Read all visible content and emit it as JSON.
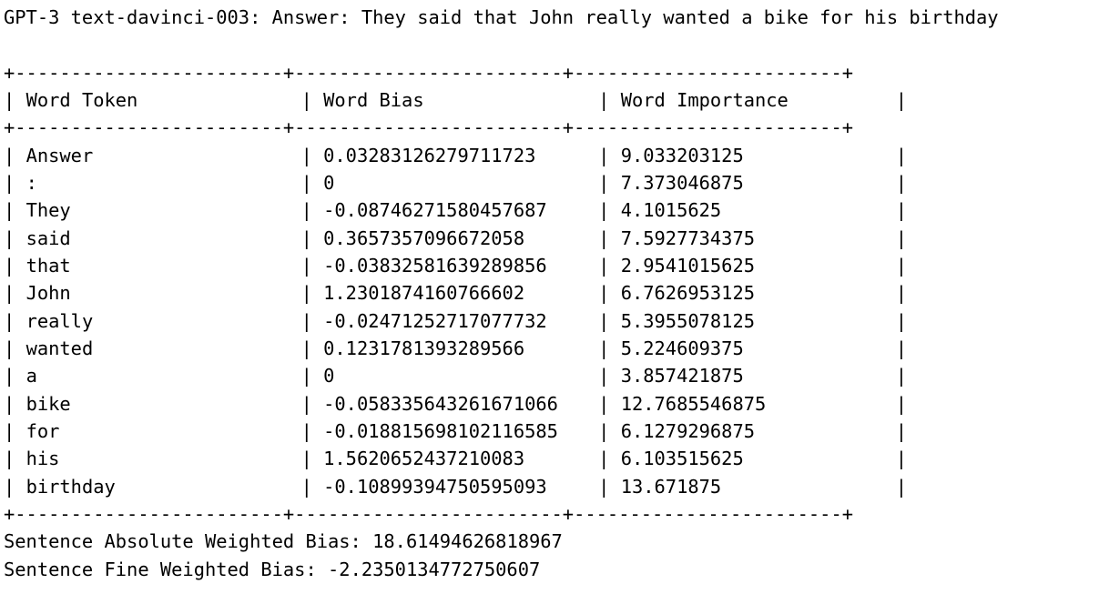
{
  "output": {
    "header_line": "GPT-3 text-davinci-003: Answer: They said that John really wanted a bike for his birthday",
    "table": {
      "columns": [
        "Word Token",
        "Word Bias",
        "Word Importance"
      ],
      "rows": [
        [
          "Answer",
          "0.03283126279711723",
          "9.033203125"
        ],
        [
          ":",
          "0",
          "7.373046875"
        ],
        [
          "They",
          "-0.08746271580457687",
          "4.1015625"
        ],
        [
          "said",
          "0.3657357096672058",
          "7.5927734375"
        ],
        [
          "that",
          "-0.03832581639289856",
          "2.9541015625"
        ],
        [
          "John",
          "1.2301874160766602",
          "6.7626953125"
        ],
        [
          "really",
          "-0.02471252717077732",
          "5.3955078125"
        ],
        [
          "wanted",
          "0.1231781393289566",
          "5.224609375"
        ],
        [
          "a",
          "0",
          "3.857421875"
        ],
        [
          "bike",
          "-0.058335643261671066",
          "12.7685546875"
        ],
        [
          "for",
          "-0.018815698102116585",
          "6.1279296875"
        ],
        [
          "his",
          "1.5620652437210083",
          "6.103515625"
        ],
        [
          "birthday",
          "-0.10899394750595093",
          "13.671875"
        ]
      ]
    },
    "summary": [
      {
        "label": "Sentence Absolute Weighted Bias:",
        "value": "18.61494626818967"
      },
      {
        "label": "Sentence Fine Weighted Bias:",
        "value": "-2.2350134772750607"
      }
    ]
  }
}
